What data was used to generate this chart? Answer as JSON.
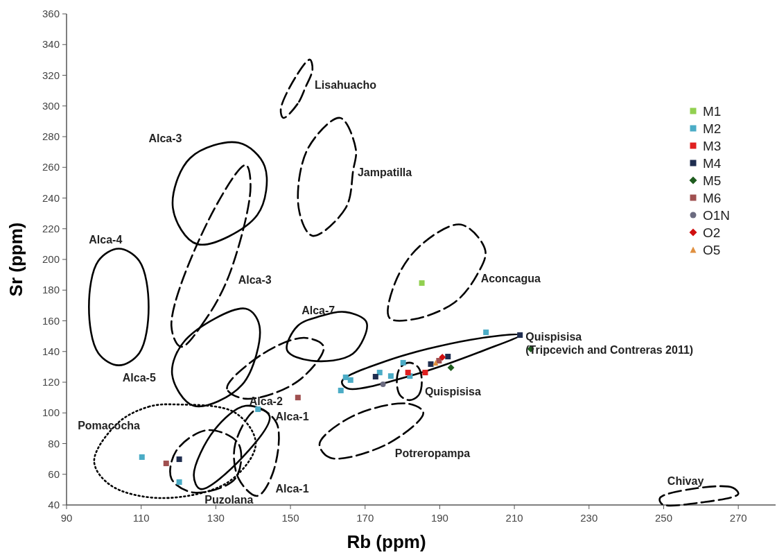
{
  "chart_data": {
    "type": "scatter",
    "xlabel": "Rb (ppm)",
    "ylabel": "Sr (ppm)",
    "xlim": [
      90,
      280
    ],
    "ylim": [
      40,
      360
    ],
    "xticks": [
      90,
      110,
      130,
      150,
      170,
      190,
      210,
      230,
      250,
      270
    ],
    "yticks": [
      40,
      60,
      80,
      100,
      120,
      140,
      160,
      180,
      200,
      220,
      240,
      260,
      280,
      300,
      320,
      340,
      360
    ],
    "grid": false,
    "legend": "top right",
    "marker": "square",
    "series": [
      {
        "name": "M1",
        "color": "#92d050",
        "x": [
          185.2
        ],
        "values": [
          184.6
        ]
      },
      {
        "name": "M2",
        "color": "#4bacc6",
        "x": [
          202.4,
          164.8,
          166.1,
          163.5,
          173.9,
          176.9,
          180.2,
          182,
          110.2,
          120.2,
          141.3
        ],
        "values": [
          152.5,
          123.2,
          121.4,
          114.6,
          126.3,
          124,
          132.7,
          124,
          71.2,
          54.9,
          102.4
        ]
      },
      {
        "name": "M3",
        "color": "#e02020",
        "x": [
          181.5,
          186.1
        ],
        "values": [
          126.3,
          126.3
        ]
      },
      {
        "name": "M4",
        "color": "#1f2d4f",
        "x": [
          211.5,
          172.8,
          187.6,
          192.2,
          120.2
        ],
        "values": [
          150.7,
          123.6,
          131.8,
          136.7,
          69.8
        ]
      },
      {
        "name": "M5",
        "color": "#1e5c1e",
        "marker": "diamond",
        "x": [
          214.4,
          193
        ],
        "values": [
          141.7,
          129.5
        ]
      },
      {
        "name": "M6",
        "color": "#a05050",
        "x": [
          189.8,
          116.7,
          152
        ],
        "values": [
          134,
          67.1,
          110
        ]
      },
      {
        "name": "O1N",
        "color": "#6b6b80",
        "marker": "circle",
        "x": [
          174.8
        ],
        "values": [
          118.6
        ]
      },
      {
        "name": "O2",
        "color": "#d01010",
        "marker": "diamond",
        "x": [
          190.7
        ],
        "values": [
          136.3
        ]
      },
      {
        "name": "O5",
        "color": "#e09040",
        "marker": "triangle",
        "x": [
          188.9
        ],
        "values": [
          132.7
        ]
      }
    ],
    "annotations": [
      "Lisahuacho",
      "Jampatilla",
      "Alca-3",
      "Alca-4",
      "Alca-3",
      "Alca-7",
      "Aconcagua",
      "Quispisisa (Tripcevich and Contreras 2011)",
      "Alca-5",
      "Alca-2",
      "Quispisisa",
      "Alca-1",
      "Pomacocha",
      "Potreropampa",
      "Alca-1",
      "Puzolana",
      "Chivay"
    ]
  }
}
